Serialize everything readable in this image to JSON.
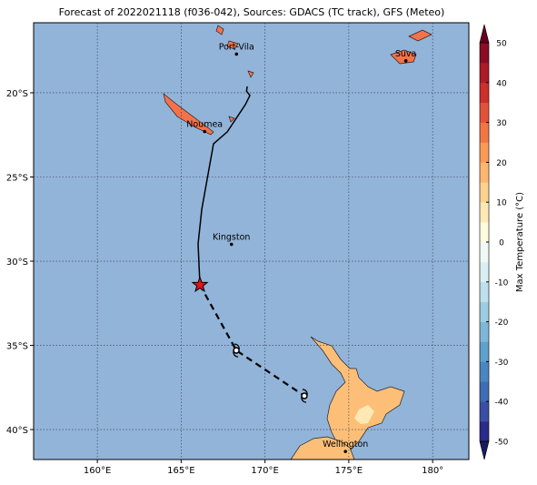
{
  "chart_data": {
    "type": "map",
    "title": "Forecast of 2022021118 (f036-042), Sources: GDACS (TC track), GFS (Meteo)",
    "lonlim": [
      156.2,
      182.16
    ],
    "latlim": [
      -15.84,
      -41.78
    ],
    "lonticks": [
      {
        "value": 160,
        "label": "160°E"
      },
      {
        "value": 165,
        "label": "165°E"
      },
      {
        "value": 170,
        "label": "170°E"
      },
      {
        "value": 175,
        "label": "175°E"
      },
      {
        "value": 180,
        "label": "180°"
      }
    ],
    "latticks": [
      {
        "value": -20,
        "label": "20°S"
      },
      {
        "value": -25,
        "label": "25°S"
      },
      {
        "value": -30,
        "label": "30°S"
      },
      {
        "value": -35,
        "label": "35°S"
      },
      {
        "value": -40,
        "label": "40°S"
      }
    ],
    "grid": true,
    "cities": [
      {
        "name": "Port-Vila",
        "lon": 168.3,
        "lat": -17.7
      },
      {
        "name": "Noumea",
        "lon": 166.4,
        "lat": -22.3
      },
      {
        "name": "Suva",
        "lon": 178.4,
        "lat": -18.1
      },
      {
        "name": "Kingston",
        "lon": 168.0,
        "lat": -29.0
      },
      {
        "name": "Wellington",
        "lon": 174.8,
        "lat": -41.3
      }
    ],
    "track": {
      "lon": [
        168.94,
        168.9,
        169.1,
        168.83,
        167.75,
        166.93,
        166.23,
        166.01,
        166.12
      ],
      "lat": [
        -19.62,
        -19.9,
        -20.16,
        -20.7,
        -22.32,
        -23.03,
        -26.92,
        -28.97,
        -31.41
      ]
    },
    "current_position": {
      "lon": 166.12,
      "lat": -31.41
    },
    "forecast_track": {
      "lon": [
        166.12,
        168.29,
        172.35
      ],
      "lat": [
        -31.41,
        -35.3,
        -38.0
      ]
    },
    "colorbar": {
      "label": "Max Temperature (°C)",
      "clim": [
        -50,
        50
      ],
      "ticks": [
        -50,
        -40,
        -30,
        -20,
        -10,
        0,
        10,
        20,
        30,
        40,
        50
      ],
      "colors": [
        "#2b2b8c",
        "#3a4fa3",
        "#3f6cb4",
        "#4a86c0",
        "#5fa0cc",
        "#7db8d8",
        "#9ccde3",
        "#bde0ec",
        "#daeff4",
        "#f0f9f5",
        "#fffbdf",
        "#fee9b5",
        "#fdd291",
        "#fdb770",
        "#f99a56",
        "#f07646",
        "#e2523a",
        "#cc2f2c",
        "#ad1a28",
        "#8a0c25"
      ],
      "under_color": "#1a1a5e",
      "over_color": "#67001f"
    }
  }
}
